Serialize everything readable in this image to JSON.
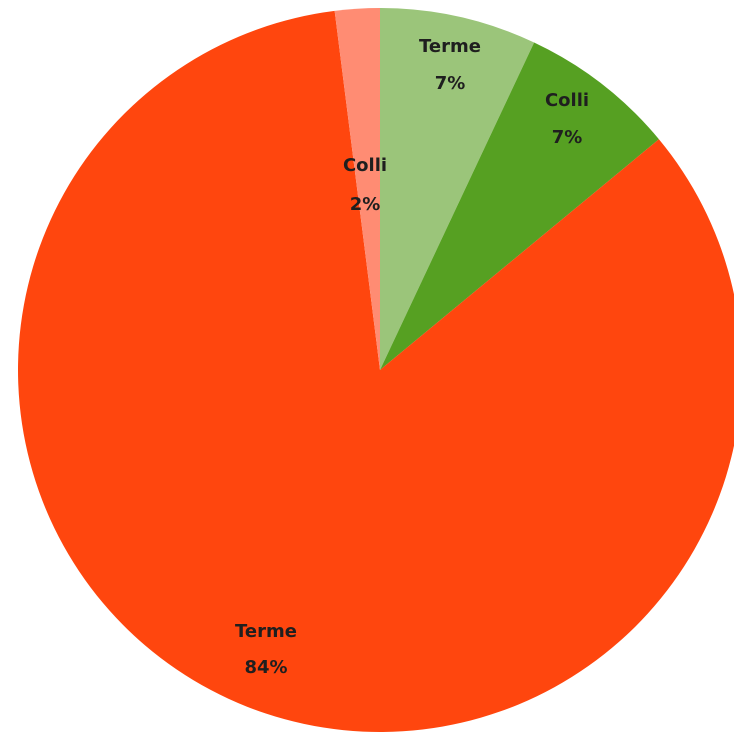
{
  "chart_data": {
    "type": "pie",
    "start_angle_deg": 0,
    "direction": "clockwise",
    "slices": [
      {
        "name": "Terme",
        "label": "Terme",
        "value_label": "7%",
        "value": 7,
        "color": "#9BC57A"
      },
      {
        "name": "Colli",
        "label": "Colli",
        "value_label": "7%",
        "value": 7,
        "color": "#56A022"
      },
      {
        "name": "Terme",
        "label": "Terme",
        "value_label": "84%",
        "value": 84,
        "color": "#FF460E"
      },
      {
        "name": "Colli",
        "label": "Colli",
        "value_label": "2%",
        "value": 2,
        "color": "#FF8C73"
      }
    ],
    "title": "",
    "legend": "none"
  }
}
